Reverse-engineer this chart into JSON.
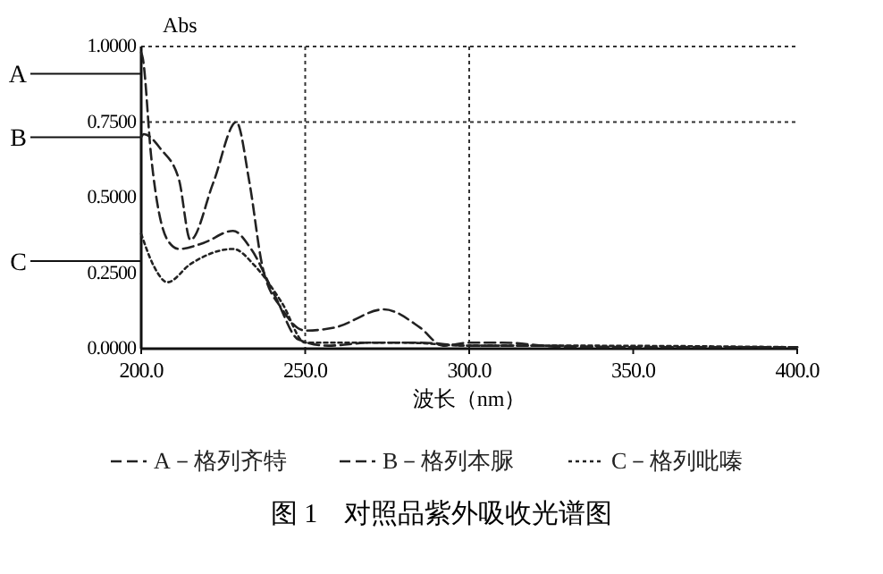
{
  "chart_data": {
    "type": "line",
    "title": "图 1　对照品紫外吸收光谱图",
    "xlabel": "波长（nm）",
    "ylabel": "Abs",
    "xlim": [
      200,
      400
    ],
    "xticks": [
      {
        "value": 200,
        "label": "200.0"
      },
      {
        "value": 250,
        "label": "250.0"
      },
      {
        "value": 300,
        "label": "300.0"
      },
      {
        "value": 350,
        "label": "350.0"
      },
      {
        "value": 400,
        "label": "400.0"
      }
    ],
    "ylim": [
      0,
      1
    ],
    "yticks": [
      {
        "value": 0,
        "label": "0.0000"
      },
      {
        "value": 0.25,
        "label": "0.2500"
      },
      {
        "value": 0.5,
        "label": "0.5000"
      },
      {
        "value": 0.75,
        "label": "0.7500"
      },
      {
        "value": 1,
        "label": "1.0000"
      }
    ],
    "legend": "bottom",
    "marker": "none",
    "grid": false,
    "ref_lines": [
      {
        "axis": "x",
        "value": 250,
        "line_style": "dotted"
      },
      {
        "axis": "x",
        "value": 300,
        "line_style": "dotted"
      },
      {
        "axis": "y",
        "value": 0.75,
        "line_style": "dotted"
      },
      {
        "axis": "y",
        "value": 0.91,
        "label": "A",
        "line_style": "solid"
      },
      {
        "axis": "y",
        "value": 0.7,
        "label": "B",
        "line_style": "solid"
      },
      {
        "axis": "y",
        "value": 0.29,
        "label": "C",
        "line_style": "solid"
      }
    ],
    "series": [
      {
        "name": "A－格列齐特",
        "color": "#222222",
        "line_style": "dashed",
        "x": [
          200,
          200.5,
          203,
          208,
          211.5,
          219,
          228,
          233.5,
          241,
          248,
          257,
          270,
          285,
          300,
          320,
          350,
          400
        ],
        "values": [
          0.98,
          0.96,
          0.64,
          0.36,
          0.33,
          0.35,
          0.39,
          0.33,
          0.17,
          0.03,
          0.01,
          0.02,
          0.02,
          0.01,
          0.01,
          0.005,
          0.005
        ]
      },
      {
        "name": "B－格列本脲",
        "color": "#222222",
        "line_style": "dashed",
        "x": [
          200,
          200.8,
          206,
          211.5,
          215,
          222,
          229,
          233,
          237,
          243,
          250,
          259,
          274,
          285,
          292,
          300,
          310,
          330,
          400
        ],
        "values": [
          0.7,
          0.71,
          0.66,
          0.56,
          0.36,
          0.55,
          0.75,
          0.55,
          0.27,
          0.13,
          0.06,
          0.07,
          0.13,
          0.07,
          0.01,
          0.02,
          0.02,
          0.005,
          0.005
        ]
      },
      {
        "name": "C－格列吡嗪",
        "color": "#222222",
        "line_style": "dotted",
        "x": [
          200,
          204,
          208,
          215,
          228,
          235,
          243,
          250,
          260,
          280,
          300,
          330,
          400
        ],
        "values": [
          0.38,
          0.27,
          0.22,
          0.28,
          0.33,
          0.27,
          0.15,
          0.02,
          0.02,
          0.02,
          0.01,
          0.01,
          0.005
        ]
      }
    ]
  }
}
